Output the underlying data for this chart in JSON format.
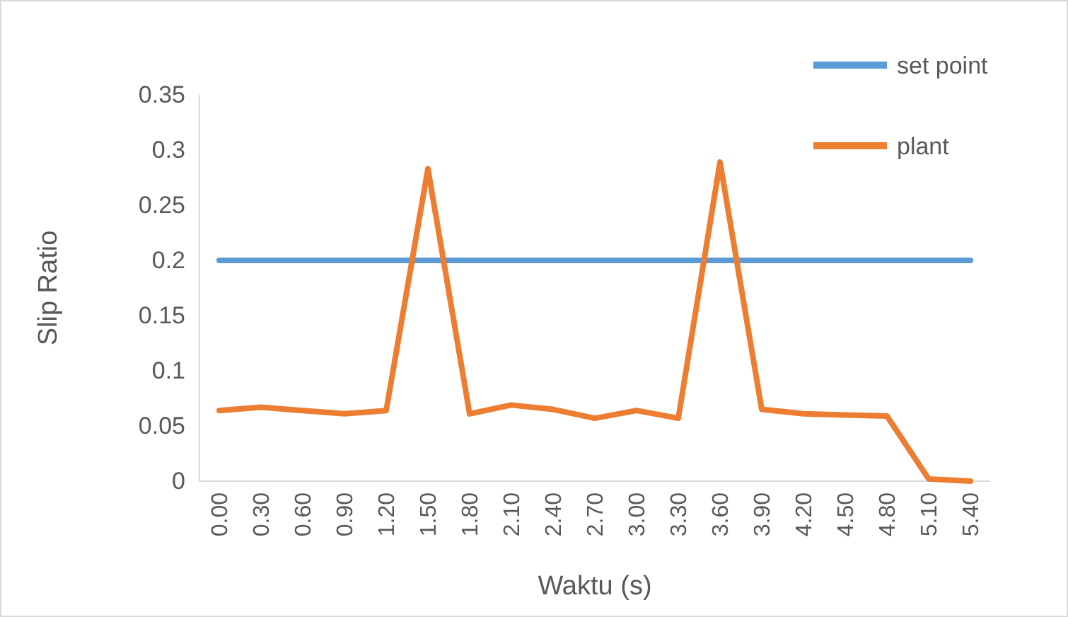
{
  "chart_data": {
    "type": "line",
    "xlabel": "Waktu (s)",
    "ylabel": "Slip Ratio",
    "categories": [
      "0.00",
      "0.30",
      "0.60",
      "0.90",
      "1.20",
      "1.50",
      "1.80",
      "2.10",
      "2.40",
      "2.70",
      "3.00",
      "3.30",
      "3.60",
      "3.90",
      "4.20",
      "4.50",
      "4.80",
      "5.10",
      "5.40"
    ],
    "series": [
      {
        "name": "set point",
        "color": "#5b9bd5",
        "values": [
          0.2,
          0.2,
          0.2,
          0.2,
          0.2,
          0.2,
          0.2,
          0.2,
          0.2,
          0.2,
          0.2,
          0.2,
          0.2,
          0.2,
          0.2,
          0.2,
          0.2,
          0.2,
          0.2
        ]
      },
      {
        "name": "plant",
        "color": "#ed7d31",
        "values": [
          0.064,
          0.067,
          0.064,
          0.061,
          0.064,
          0.283,
          0.061,
          0.069,
          0.065,
          0.057,
          0.064,
          0.057,
          0.289,
          0.065,
          0.061,
          0.06,
          0.059,
          0.002,
          0
        ]
      }
    ],
    "ylim": [
      0,
      0.35
    ],
    "yticks": [
      0,
      0.05,
      0.1,
      0.15,
      0.2,
      0.25,
      0.3,
      0.35
    ],
    "grid": false,
    "legend": "top right",
    "marker": "none",
    "line_style": "solid"
  }
}
